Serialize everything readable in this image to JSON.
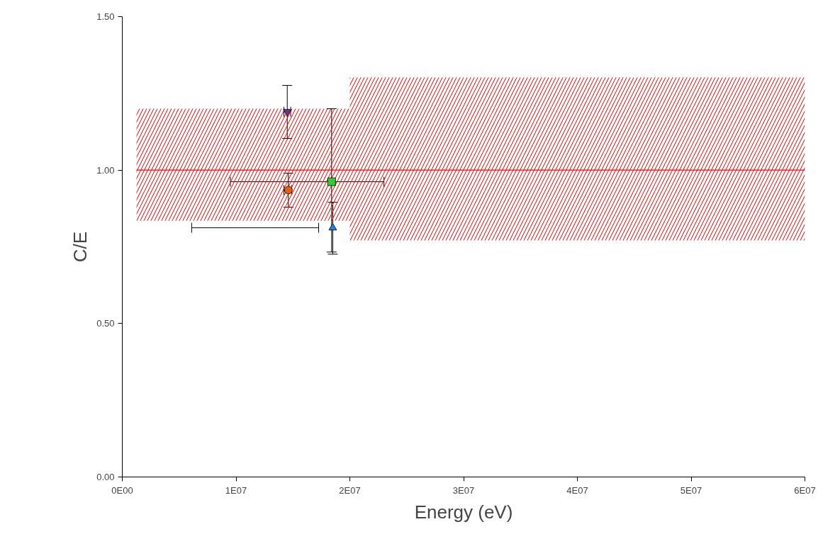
{
  "chart_data": {
    "type": "scatter",
    "xlabel": "Energy (eV)",
    "ylabel": "C/E",
    "xlim": [
      0,
      60000000
    ],
    "ylim": [
      0,
      1.5
    ],
    "xticks": [
      {
        "value": 0,
        "label": "0E00"
      },
      {
        "value": 10000000,
        "label": "1E07"
      },
      {
        "value": 20000000,
        "label": "2E07"
      },
      {
        "value": 30000000,
        "label": "3E07"
      },
      {
        "value": 40000000,
        "label": "4E07"
      },
      {
        "value": 50000000,
        "label": "5E07"
      },
      {
        "value": 60000000,
        "label": "6E07"
      }
    ],
    "yticks": [
      {
        "value": 0,
        "label": "0.00"
      },
      {
        "value": 0.5,
        "label": "0.50"
      },
      {
        "value": 1.0,
        "label": "1.00"
      },
      {
        "value": 1.5,
        "label": "1.50"
      }
    ],
    "grid": false,
    "series": [
      {
        "type": "step",
        "color": "#ff0000",
        "x": [
          1250000,
          20000000,
          60000000
        ],
        "values": [
          1.0,
          1.0,
          1.0
        ],
        "lower": [
          0.835,
          0.771,
          0.771
        ],
        "upper": [
          1.2,
          1.302,
          1.302
        ]
      },
      {
        "marker": "triangle_down",
        "color": "#7030a0",
        "x": [
          14500000
        ],
        "values": [
          1.19
        ],
        "errors": [
          [
            1.103,
            1.276
          ]
        ],
        "xerrors": [
          [
            14200000,
            14800000
          ]
        ]
      },
      {
        "marker": "circle",
        "color": "#e06010",
        "x": [
          14600000
        ],
        "values": [
          0.935
        ],
        "errors": [
          [
            0.879,
            0.99
          ]
        ],
        "xerrors": [
          [
            14200000,
            14900000
          ]
        ]
      },
      {
        "marker": "square",
        "color": "#33cc33",
        "x": [
          18400000
        ],
        "values": [
          0.962
        ],
        "errors": [
          [
            0.733,
            1.2
          ]
        ],
        "xerrors": [
          [
            9500000,
            23000000
          ]
        ]
      },
      {
        "marker": "triangle",
        "color": "#2080e0",
        "x": [
          18500000
        ],
        "values": [
          0.812
        ],
        "errors": [
          [
            0.726,
            0.895
          ]
        ],
        "xerrors": [
          [
            6100000,
            17260000
          ]
        ]
      }
    ]
  }
}
